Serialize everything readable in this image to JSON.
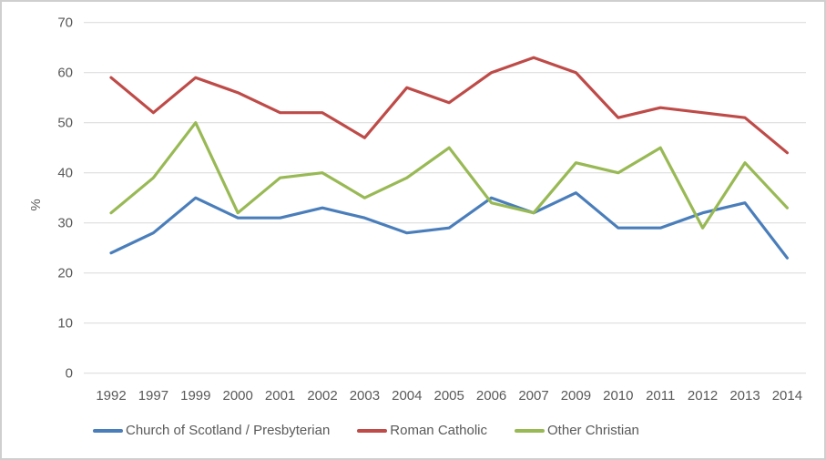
{
  "chart_data": {
    "type": "line",
    "title": "",
    "xlabel": "",
    "ylabel": "%",
    "ylim": [
      0,
      70
    ],
    "yticks": [
      0,
      10,
      20,
      30,
      40,
      50,
      60,
      70
    ],
    "grid": true,
    "legend_position": "bottom",
    "categories": [
      "1992",
      "1997",
      "1999",
      "2000",
      "2001",
      "2002",
      "2003",
      "2004",
      "2005",
      "2006",
      "2007",
      "2009",
      "2010",
      "2011",
      "2012",
      "2013",
      "2014"
    ],
    "series": [
      {
        "name": "Church of Scotland / Presbyterian",
        "color": "#4A7EBB",
        "values": [
          24,
          28,
          35,
          31,
          31,
          33,
          31,
          28,
          29,
          35,
          32,
          36,
          29,
          29,
          32,
          34,
          23
        ]
      },
      {
        "name": "Roman Catholic",
        "color": "#BE4B48",
        "values": [
          59,
          52,
          59,
          56,
          52,
          52,
          47,
          57,
          54,
          60,
          63,
          60,
          51,
          53,
          52,
          51,
          44
        ]
      },
      {
        "name": "Other Christian",
        "color": "#98B954",
        "values": [
          32,
          39,
          50,
          32,
          39,
          40,
          35,
          39,
          45,
          34,
          32,
          42,
          40,
          45,
          29,
          42,
          33
        ]
      }
    ]
  },
  "style": {
    "gridline_color": "#d9d9d9",
    "tick_label_color": "#595959",
    "frame_border_color": "#cfcfcf"
  }
}
